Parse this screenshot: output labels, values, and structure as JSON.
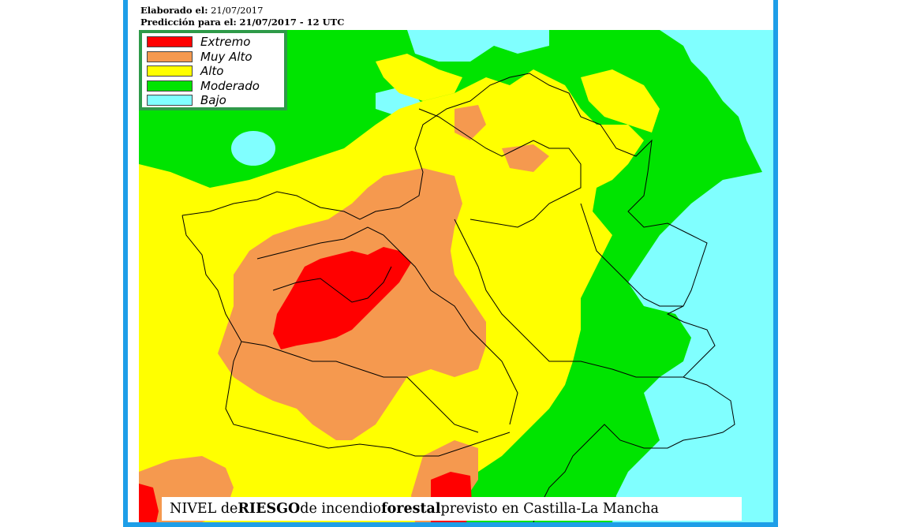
{
  "header": {
    "elaborado_label": "Elaborado el:",
    "elaborado_date": "21/07/2017",
    "prediccion_label": "Predicción para el:",
    "prediccion_value": "21/07/2017 - 12 UTC"
  },
  "legend": {
    "items": [
      {
        "label": "Extremo",
        "color": "#ff0000"
      },
      {
        "label": "Muy Alto",
        "color": "#f5994f"
      },
      {
        "label": "Alto",
        "color": "#ffff00"
      },
      {
        "label": "Moderado",
        "color": "#00e400"
      },
      {
        "label": "Bajo",
        "color": "#80ffff"
      }
    ]
  },
  "caption": {
    "part1": "NIVEL de ",
    "part2": "RIESGO",
    "part3": " de incendio ",
    "part4": "forestal",
    "part5": " previsto en Castilla-La Mancha"
  },
  "colors": {
    "frame": "#1e9ee8",
    "legend_border": "#2e9a48"
  }
}
